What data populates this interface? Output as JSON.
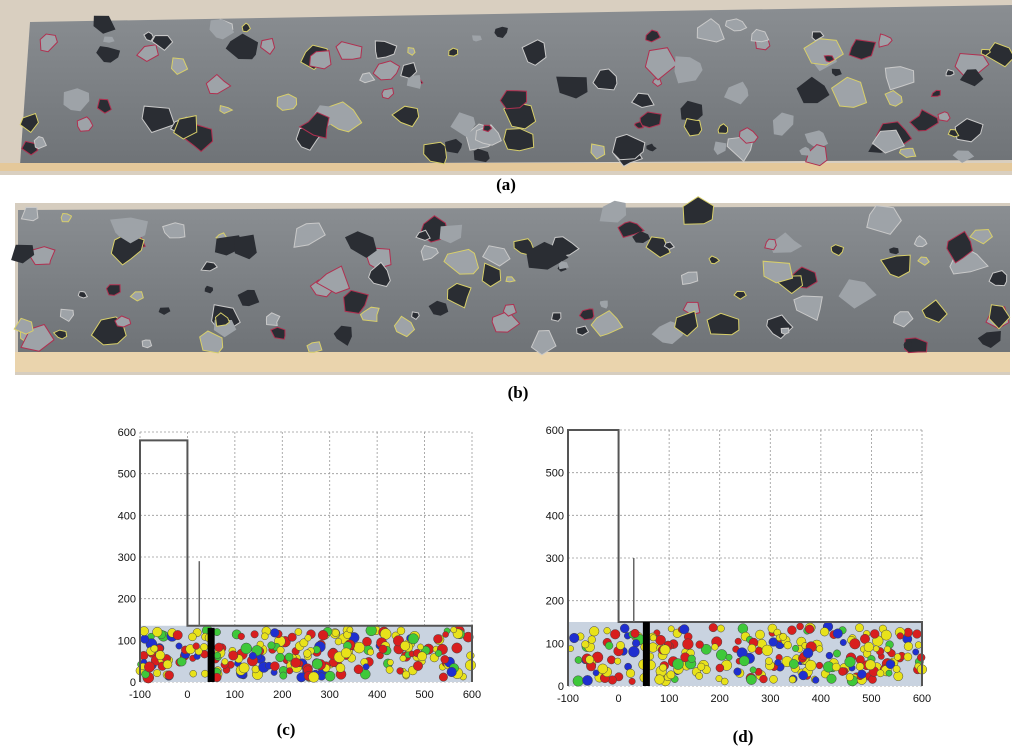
{
  "photos": [
    {
      "caption": "(a)"
    },
    {
      "caption": "(b)"
    }
  ],
  "chart_data": [
    {
      "type": "line",
      "caption": "(c)",
      "xlim": [
        -100,
        600
      ],
      "ylim": [
        0,
        600
      ],
      "xticks": [
        -100,
        0,
        100,
        200,
        300,
        400,
        500,
        600
      ],
      "yticks": [
        0,
        100,
        200,
        300,
        400,
        500,
        600
      ],
      "grid": true,
      "outline": {
        "x": [
          -100,
          -100,
          0,
          0,
          600,
          600
        ],
        "y": [
          0,
          580,
          580,
          135,
          135,
          0
        ]
      },
      "gauge": {
        "x": [
          25,
          25
        ],
        "y": [
          135,
          290
        ]
      },
      "bar": {
        "x": [
          50,
          50
        ],
        "y": [
          0,
          130
        ]
      }
    },
    {
      "type": "line",
      "caption": "(d)",
      "xlim": [
        -100,
        600
      ],
      "ylim": [
        0,
        600
      ],
      "xticks": [
        -100,
        0,
        100,
        200,
        300,
        400,
        500,
        600
      ],
      "yticks": [
        0,
        100,
        200,
        300,
        400,
        500,
        600
      ],
      "grid": true,
      "outline": {
        "x": [
          -100,
          -100,
          0,
          0,
          600,
          600
        ],
        "y": [
          0,
          600,
          600,
          150,
          150,
          0
        ]
      },
      "gauge": {
        "x": [
          30,
          30
        ],
        "y": [
          150,
          300
        ]
      },
      "bar": {
        "x": [
          55,
          55
        ],
        "y": [
          0,
          150
        ]
      }
    }
  ]
}
